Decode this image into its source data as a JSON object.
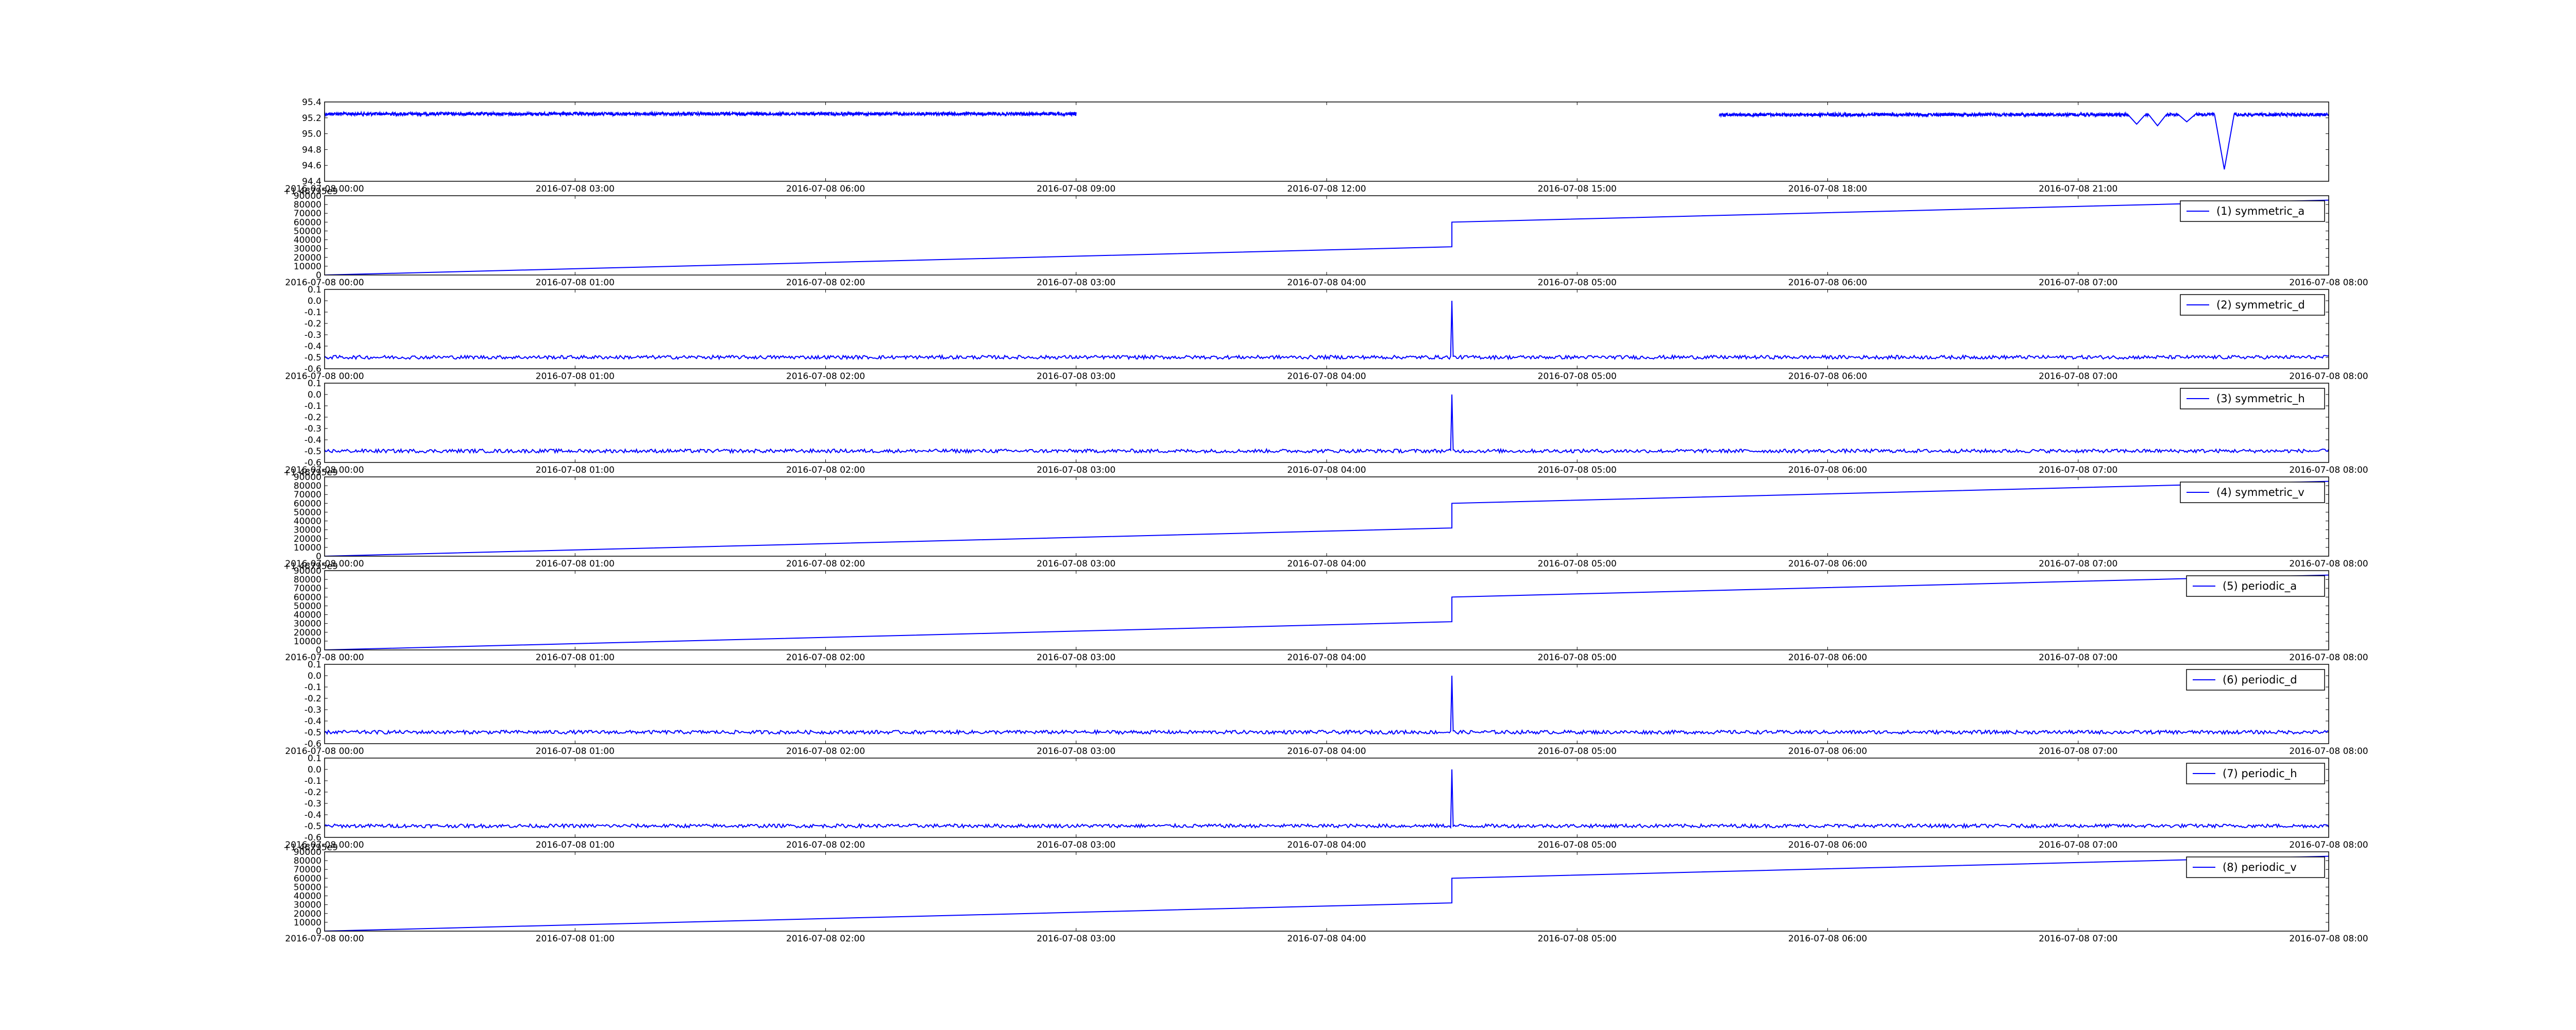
{
  "colors": {
    "line": "#0000ff",
    "axes": "#000000",
    "background": "#ffffff"
  },
  "chart_data": [
    {
      "type": "line",
      "title": "",
      "xlabel": "",
      "ylabel": "",
      "legend": null,
      "grid": false,
      "x_unit": "hours since 2016-07-08 00:00",
      "xlim": [
        0,
        24
      ],
      "ylim": [
        94.4,
        95.4
      ],
      "y_ticks": [
        "94.4",
        "94.6",
        "94.8",
        "95.0",
        "95.2",
        "95.4"
      ],
      "x_ticks": [
        {
          "value": 0,
          "label": "2016-07-08 00:00"
        },
        {
          "value": 3,
          "label": "2016-07-08 03:00"
        },
        {
          "value": 6,
          "label": "2016-07-08 06:00"
        },
        {
          "value": 9,
          "label": "2016-07-08 09:00"
        },
        {
          "value": 12,
          "label": "2016-07-08 12:00"
        },
        {
          "value": 15,
          "label": "2016-07-08 15:00"
        },
        {
          "value": 18,
          "label": "2016-07-08 18:00"
        },
        {
          "value": 21,
          "label": "2016-07-08 21:00"
        }
      ],
      "series": [
        {
          "name": "",
          "segments": [
            {
              "x_start": 0.0,
              "x_end": 9.0,
              "baseline": 95.27,
              "noise": 0.04
            },
            {
              "x_start": 16.7,
              "x_end": 24.0,
              "baseline": 95.26,
              "noise": 0.04
            }
          ],
          "dips": [
            {
              "x": 21.7,
              "y": 95.12
            },
            {
              "x": 21.95,
              "y": 95.1
            },
            {
              "x": 22.3,
              "y": 95.15
            },
            {
              "x": 22.75,
              "y": 94.55
            }
          ]
        }
      ]
    },
    {
      "type": "line",
      "title": "",
      "xlabel": "",
      "ylabel": "",
      "offset_text": "+1.46795e9",
      "xlim": [
        0,
        8
      ],
      "ylim": [
        0,
        90000
      ],
      "y_ticks": [
        "0",
        "10000",
        "20000",
        "30000",
        "40000",
        "50000",
        "60000",
        "70000",
        "80000",
        "90000"
      ],
      "x_ticks": [
        "2016-07-08 00:00",
        "2016-07-08 01:00",
        "2016-07-08 02:00",
        "2016-07-08 03:00",
        "2016-07-08 04:00",
        "2016-07-08 05:00",
        "2016-07-08 06:00",
        "2016-07-08 07:00",
        "2016-07-08 08:00"
      ],
      "legend": {
        "location": "upper right"
      },
      "series": [
        {
          "name": "(1) symmetric_a",
          "x": [
            0,
            4.5,
            4.5,
            8
          ],
          "y": [
            0,
            32000,
            60000,
            85000
          ]
        }
      ]
    },
    {
      "type": "line",
      "title": "",
      "xlabel": "",
      "ylabel": "",
      "xlim": [
        0,
        8
      ],
      "ylim": [
        -0.6,
        0.1
      ],
      "y_ticks": [
        "-0.6",
        "-0.5",
        "-0.4",
        "-0.3",
        "-0.2",
        "-0.1",
        "0.0",
        "0.1"
      ],
      "x_ticks": [
        "2016-07-08 00:00",
        "2016-07-08 01:00",
        "2016-07-08 02:00",
        "2016-07-08 03:00",
        "2016-07-08 04:00",
        "2016-07-08 05:00",
        "2016-07-08 06:00",
        "2016-07-08 07:00",
        "2016-07-08 08:00"
      ],
      "legend": {
        "location": "upper right"
      },
      "series": [
        {
          "name": "(2) symmetric_d",
          "baseline": -0.5,
          "noise": 0.02,
          "spike": {
            "x": 4.5,
            "y": 0.0
          }
        }
      ]
    },
    {
      "type": "line",
      "title": "",
      "xlabel": "",
      "ylabel": "",
      "xlim": [
        0,
        8
      ],
      "ylim": [
        -0.6,
        0.1
      ],
      "y_ticks": [
        "-0.6",
        "-0.5",
        "-0.4",
        "-0.3",
        "-0.2",
        "-0.1",
        "0.0",
        "0.1"
      ],
      "x_ticks": [
        "2016-07-08 00:00",
        "2016-07-08 01:00",
        "2016-07-08 02:00",
        "2016-07-08 03:00",
        "2016-07-08 04:00",
        "2016-07-08 05:00",
        "2016-07-08 06:00",
        "2016-07-08 07:00",
        "2016-07-08 08:00"
      ],
      "legend": {
        "location": "upper right"
      },
      "series": [
        {
          "name": "(3) symmetric_h",
          "baseline": -0.5,
          "noise": 0.02,
          "spike": {
            "x": 4.5,
            "y": 0.0
          }
        }
      ]
    },
    {
      "type": "line",
      "title": "",
      "xlabel": "",
      "ylabel": "",
      "offset_text": "+1.46795e9",
      "xlim": [
        0,
        8
      ],
      "ylim": [
        0,
        90000
      ],
      "y_ticks": [
        "0",
        "10000",
        "20000",
        "30000",
        "40000",
        "50000",
        "60000",
        "70000",
        "80000",
        "90000"
      ],
      "x_ticks": [
        "2016-07-08 00:00",
        "2016-07-08 01:00",
        "2016-07-08 02:00",
        "2016-07-08 03:00",
        "2016-07-08 04:00",
        "2016-07-08 05:00",
        "2016-07-08 06:00",
        "2016-07-08 07:00",
        "2016-07-08 08:00"
      ],
      "legend": {
        "location": "upper right"
      },
      "series": [
        {
          "name": "(4) symmetric_v",
          "x": [
            0,
            4.5,
            4.5,
            8
          ],
          "y": [
            0,
            32000,
            60000,
            85000
          ]
        }
      ]
    },
    {
      "type": "line",
      "title": "",
      "xlabel": "",
      "ylabel": "",
      "offset_text": "+1.46795e9",
      "xlim": [
        0,
        8
      ],
      "ylim": [
        0,
        90000
      ],
      "y_ticks": [
        "0",
        "10000",
        "20000",
        "30000",
        "40000",
        "50000",
        "60000",
        "70000",
        "80000",
        "90000"
      ],
      "x_ticks": [
        "2016-07-08 00:00",
        "2016-07-08 01:00",
        "2016-07-08 02:00",
        "2016-07-08 03:00",
        "2016-07-08 04:00",
        "2016-07-08 05:00",
        "2016-07-08 06:00",
        "2016-07-08 07:00",
        "2016-07-08 08:00"
      ],
      "legend": {
        "location": "upper right"
      },
      "series": [
        {
          "name": "(5) periodic_a",
          "x": [
            0,
            4.5,
            4.5,
            8
          ],
          "y": [
            0,
            32000,
            60000,
            85000
          ]
        }
      ]
    },
    {
      "type": "line",
      "title": "",
      "xlabel": "",
      "ylabel": "",
      "xlim": [
        0,
        8
      ],
      "ylim": [
        -0.6,
        0.1
      ],
      "y_ticks": [
        "-0.6",
        "-0.5",
        "-0.4",
        "-0.3",
        "-0.2",
        "-0.1",
        "0.0",
        "0.1"
      ],
      "x_ticks": [
        "2016-07-08 00:00",
        "2016-07-08 01:00",
        "2016-07-08 02:00",
        "2016-07-08 03:00",
        "2016-07-08 04:00",
        "2016-07-08 05:00",
        "2016-07-08 06:00",
        "2016-07-08 07:00",
        "2016-07-08 08:00"
      ],
      "legend": {
        "location": "upper right"
      },
      "series": [
        {
          "name": "(6) periodic_d",
          "baseline": -0.5,
          "noise": 0.02,
          "spike": {
            "x": 4.5,
            "y": 0.0
          }
        }
      ]
    },
    {
      "type": "line",
      "title": "",
      "xlabel": "",
      "ylabel": "",
      "xlim": [
        0,
        8
      ],
      "ylim": [
        -0.6,
        0.1
      ],
      "y_ticks": [
        "-0.6",
        "-0.5",
        "-0.4",
        "-0.3",
        "-0.2",
        "-0.1",
        "0.0",
        "0.1"
      ],
      "x_ticks": [
        "2016-07-08 00:00",
        "2016-07-08 01:00",
        "2016-07-08 02:00",
        "2016-07-08 03:00",
        "2016-07-08 04:00",
        "2016-07-08 05:00",
        "2016-07-08 06:00",
        "2016-07-08 07:00",
        "2016-07-08 08:00"
      ],
      "legend": {
        "location": "upper right"
      },
      "series": [
        {
          "name": "(7) periodic_h",
          "baseline": -0.5,
          "noise": 0.02,
          "spike": {
            "x": 4.5,
            "y": 0.0
          }
        }
      ]
    },
    {
      "type": "line",
      "title": "",
      "xlabel": "",
      "ylabel": "",
      "offset_text": "+1.46795e9",
      "xlim": [
        0,
        8
      ],
      "ylim": [
        0,
        90000
      ],
      "y_ticks": [
        "0",
        "10000",
        "20000",
        "30000",
        "40000",
        "50000",
        "60000",
        "70000",
        "80000",
        "90000"
      ],
      "x_ticks": [
        "2016-07-08 00:00",
        "2016-07-08 01:00",
        "2016-07-08 02:00",
        "2016-07-08 03:00",
        "2016-07-08 04:00",
        "2016-07-08 05:00",
        "2016-07-08 06:00",
        "2016-07-08 07:00",
        "2016-07-08 08:00"
      ],
      "legend": {
        "location": "upper right"
      },
      "series": [
        {
          "name": "(8) periodic_v",
          "x": [
            0,
            4.5,
            4.5,
            8
          ],
          "y": [
            0,
            32000,
            60000,
            85000
          ]
        }
      ]
    }
  ]
}
